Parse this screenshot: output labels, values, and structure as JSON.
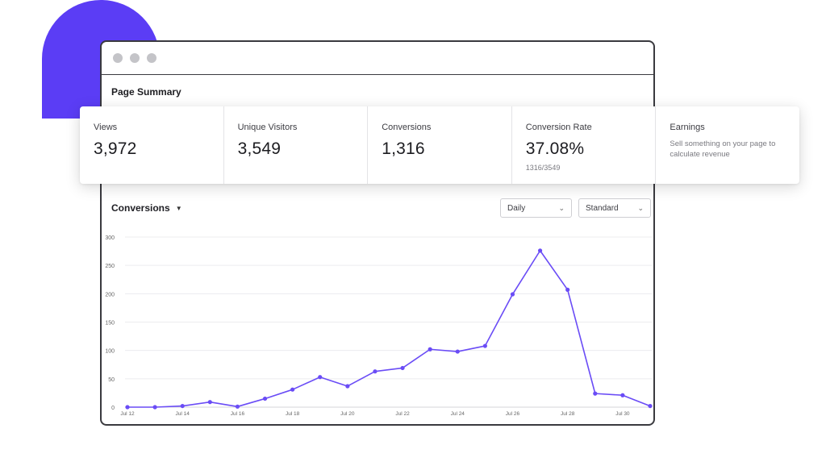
{
  "page_summary": {
    "title": "Page Summary"
  },
  "stats": [
    {
      "label": "Views",
      "value": "3,972"
    },
    {
      "label": "Unique Visitors",
      "value": "3,549"
    },
    {
      "label": "Conversions",
      "value": "1,316"
    },
    {
      "label": "Conversion Rate",
      "value": "37.08%",
      "sub": "1316/3549"
    },
    {
      "label": "Earnings",
      "description": "Sell something on your page to calculate revenue"
    }
  ],
  "chart_header": {
    "title": "Conversions",
    "caret_icon": "caret-down-icon"
  },
  "filters": {
    "period": {
      "value": "Daily",
      "icon": "chevron-down-icon"
    },
    "mode": {
      "value": "Standard",
      "icon": "chevron-down-icon"
    }
  },
  "colors": {
    "accent": "#5b3df5",
    "line": "#6a4cf6"
  },
  "chart_data": {
    "type": "line",
    "title": "Conversions",
    "xlabel": "",
    "ylabel": "",
    "ylim": [
      0,
      300
    ],
    "yticks": [
      0,
      50,
      100,
      150,
      200,
      250,
      300
    ],
    "x_tick_labels": [
      "Jul 12",
      "Jul 14",
      "Jul 16",
      "Jul 18",
      "Jul 20",
      "Jul 22",
      "Jul 24",
      "Jul 26",
      "Jul 28",
      "Jul 30"
    ],
    "x": [
      "Jul 12",
      "Jul 13",
      "Jul 14",
      "Jul 15",
      "Jul 16",
      "Jul 17",
      "Jul 18",
      "Jul 19",
      "Jul 20",
      "Jul 21",
      "Jul 22",
      "Jul 23",
      "Jul 24",
      "Jul 25",
      "Jul 26",
      "Jul 27",
      "Jul 28",
      "Jul 29",
      "Jul 30",
      "Jul 31"
    ],
    "series": [
      {
        "values": [
          0,
          0,
          2,
          9,
          1,
          15,
          31,
          53,
          37,
          63,
          69,
          102,
          98,
          108,
          199,
          276,
          207,
          24,
          21,
          2
        ]
      }
    ],
    "grid": true
  }
}
